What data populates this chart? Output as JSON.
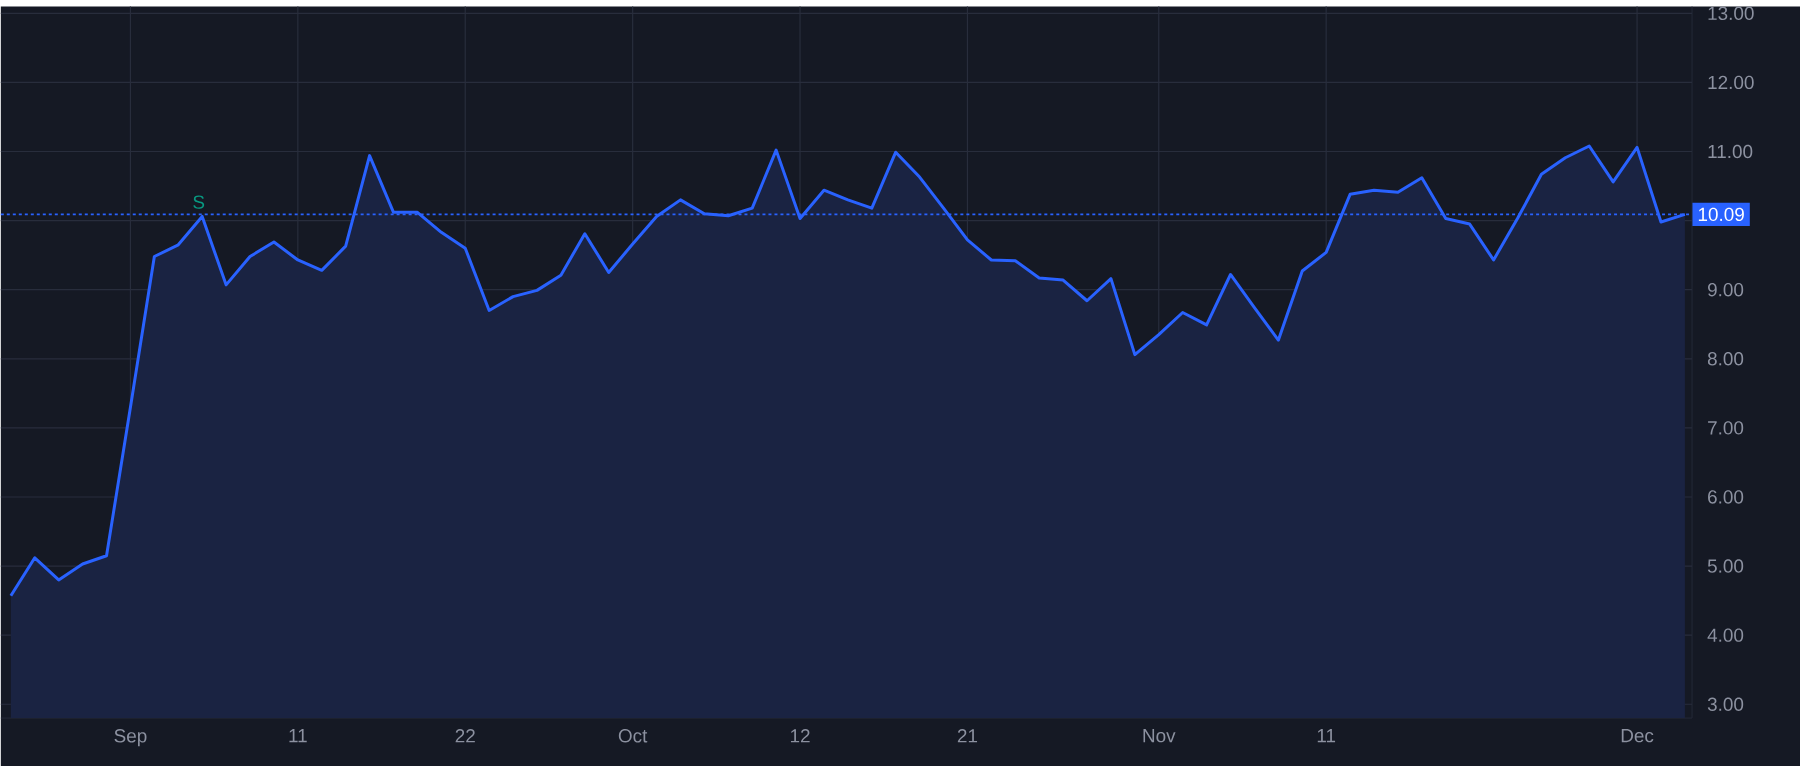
{
  "chart_data": {
    "type": "area",
    "categories": [
      null,
      null,
      null,
      null,
      null,
      "Sep",
      null,
      null,
      null,
      null,
      null,
      null,
      "11",
      null,
      null,
      null,
      null,
      null,
      null,
      "22",
      null,
      null,
      null,
      null,
      null,
      null,
      "Oct",
      null,
      null,
      null,
      null,
      null,
      null,
      "12",
      null,
      null,
      null,
      null,
      null,
      null,
      "21",
      null,
      null,
      null,
      null,
      null,
      null,
      null,
      "Nov",
      null,
      null,
      null,
      null,
      null,
      null,
      "11",
      null,
      null,
      null,
      null,
      null,
      null,
      null,
      null,
      null,
      null,
      null,
      null,
      "Dec",
      null,
      null
    ],
    "series": [
      {
        "color": "#2962ff",
        "values": [
          4.57,
          5.12,
          4.8,
          5.03,
          5.15,
          7.3,
          9.48,
          9.65,
          10.06,
          9.07,
          9.48,
          9.69,
          9.43,
          9.28,
          9.63,
          10.94,
          10.12,
          10.12,
          9.83,
          9.6,
          8.7,
          8.9,
          8.99,
          9.21,
          9.81,
          9.25,
          9.66,
          10.06,
          10.3,
          10.1,
          10.07,
          10.18,
          11.02,
          10.03,
          10.44,
          10.3,
          10.18,
          10.99,
          10.63,
          10.18,
          9.72,
          9.43,
          9.42,
          9.17,
          9.14,
          8.84,
          9.16,
          8.06,
          8.35,
          8.67,
          8.49,
          9.22,
          8.74,
          8.27,
          9.27,
          9.54,
          10.38,
          10.44,
          10.41,
          10.62,
          10.03,
          9.95,
          9.43,
          10.03,
          10.67,
          10.91,
          11.08,
          10.56,
          11.06,
          9.98,
          10.09
        ]
      }
    ],
    "ylim": [
      2.8,
      13.1
    ],
    "yticks": [
      {
        "value": 3,
        "label": "3.00"
      },
      {
        "value": 4,
        "label": "4.00"
      },
      {
        "value": 5,
        "label": "5.00"
      },
      {
        "value": 6,
        "label": "6.00"
      },
      {
        "value": 7,
        "label": "7.00"
      },
      {
        "value": 8,
        "label": "8.00"
      },
      {
        "value": 9,
        "label": "9.00"
      },
      {
        "value": 10,
        "label": null
      },
      {
        "value": 11,
        "label": "11.00"
      },
      {
        "value": 12,
        "label": "12.00"
      },
      {
        "value": 13,
        "label": "13.00"
      }
    ],
    "ref_lines": [
      {
        "axis": "y",
        "value": 10.09,
        "label": "10.09",
        "color": "#2962ff",
        "line_style": "dotted"
      }
    ],
    "annotations": [
      "S"
    ],
    "grid": true,
    "marker": "none",
    "line_style": "solid"
  }
}
